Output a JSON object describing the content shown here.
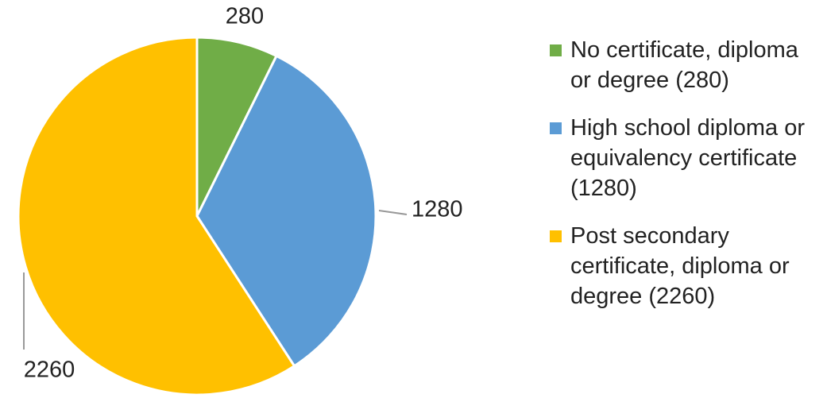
{
  "chart_data": {
    "type": "pie",
    "categories": [
      "No certificate, diploma or degree (280)",
      "High school diploma or equivalency certificate (1280)",
      "Post secondary certificate, diploma or degree (2260)"
    ],
    "values": [
      280,
      1280,
      2260
    ],
    "colors": [
      "#70ad47",
      "#5b9bd5",
      "#ffc000"
    ],
    "legend": "right"
  }
}
